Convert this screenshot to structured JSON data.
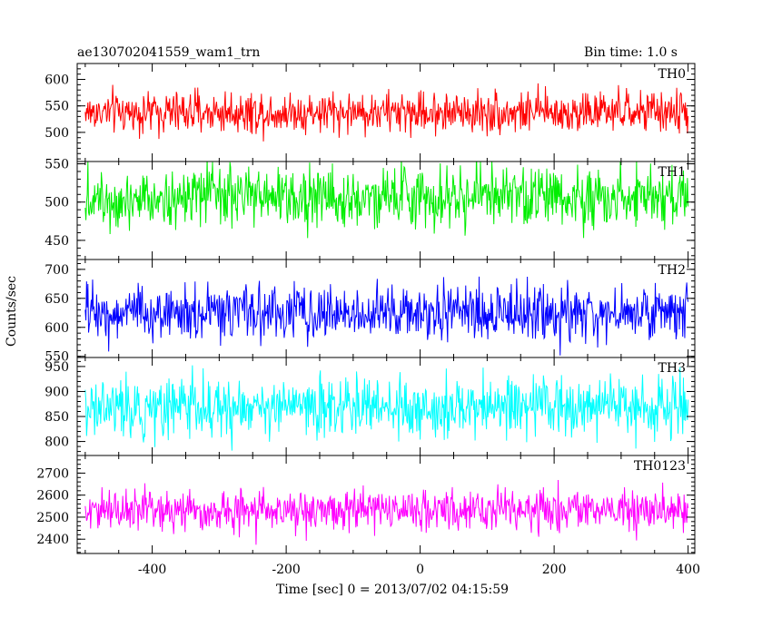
{
  "header": {
    "source_name": "ae130702041559_wam1_trn",
    "bin_time": "Bin time: 1.0 s"
  },
  "chart_data": {
    "type": "line",
    "xlabel": "Time [sec] 0 = 2013/07/02 04:15:59",
    "ylabel": "Counts/sec",
    "xlim": [
      -512,
      410
    ],
    "x_ticks": [
      -400,
      -200,
      0,
      200,
      400
    ],
    "x_start": -500,
    "x_end": 400,
    "bin_time": 1.0,
    "panels": [
      {
        "name": "TH0",
        "color": "#ff0000",
        "ylim": [
          445,
          630
        ],
        "yticks": [
          500,
          550,
          600
        ],
        "mean": 538,
        "noise": 20
      },
      {
        "name": "TH1",
        "color": "#00ee00",
        "ylim": [
          425,
          553
        ],
        "yticks": [
          450,
          500,
          550
        ],
        "mean": 507,
        "noise": 20
      },
      {
        "name": "TH2",
        "color": "#0000ff",
        "ylim": [
          548,
          717
        ],
        "yticks": [
          550,
          600,
          650,
          700
        ],
        "mean": 625,
        "noise": 24
      },
      {
        "name": "TH3",
        "color": "#00ffff",
        "ylim": [
          772,
          968
        ],
        "yticks": [
          800,
          850,
          900,
          950
        ],
        "mean": 868,
        "noise": 30
      },
      {
        "name": "TH0123",
        "color": "#ff00ff",
        "ylim": [
          2335,
          2780
        ],
        "yticks": [
          2400,
          2500,
          2600,
          2700
        ],
        "mean": 2530,
        "noise": 48
      }
    ]
  }
}
